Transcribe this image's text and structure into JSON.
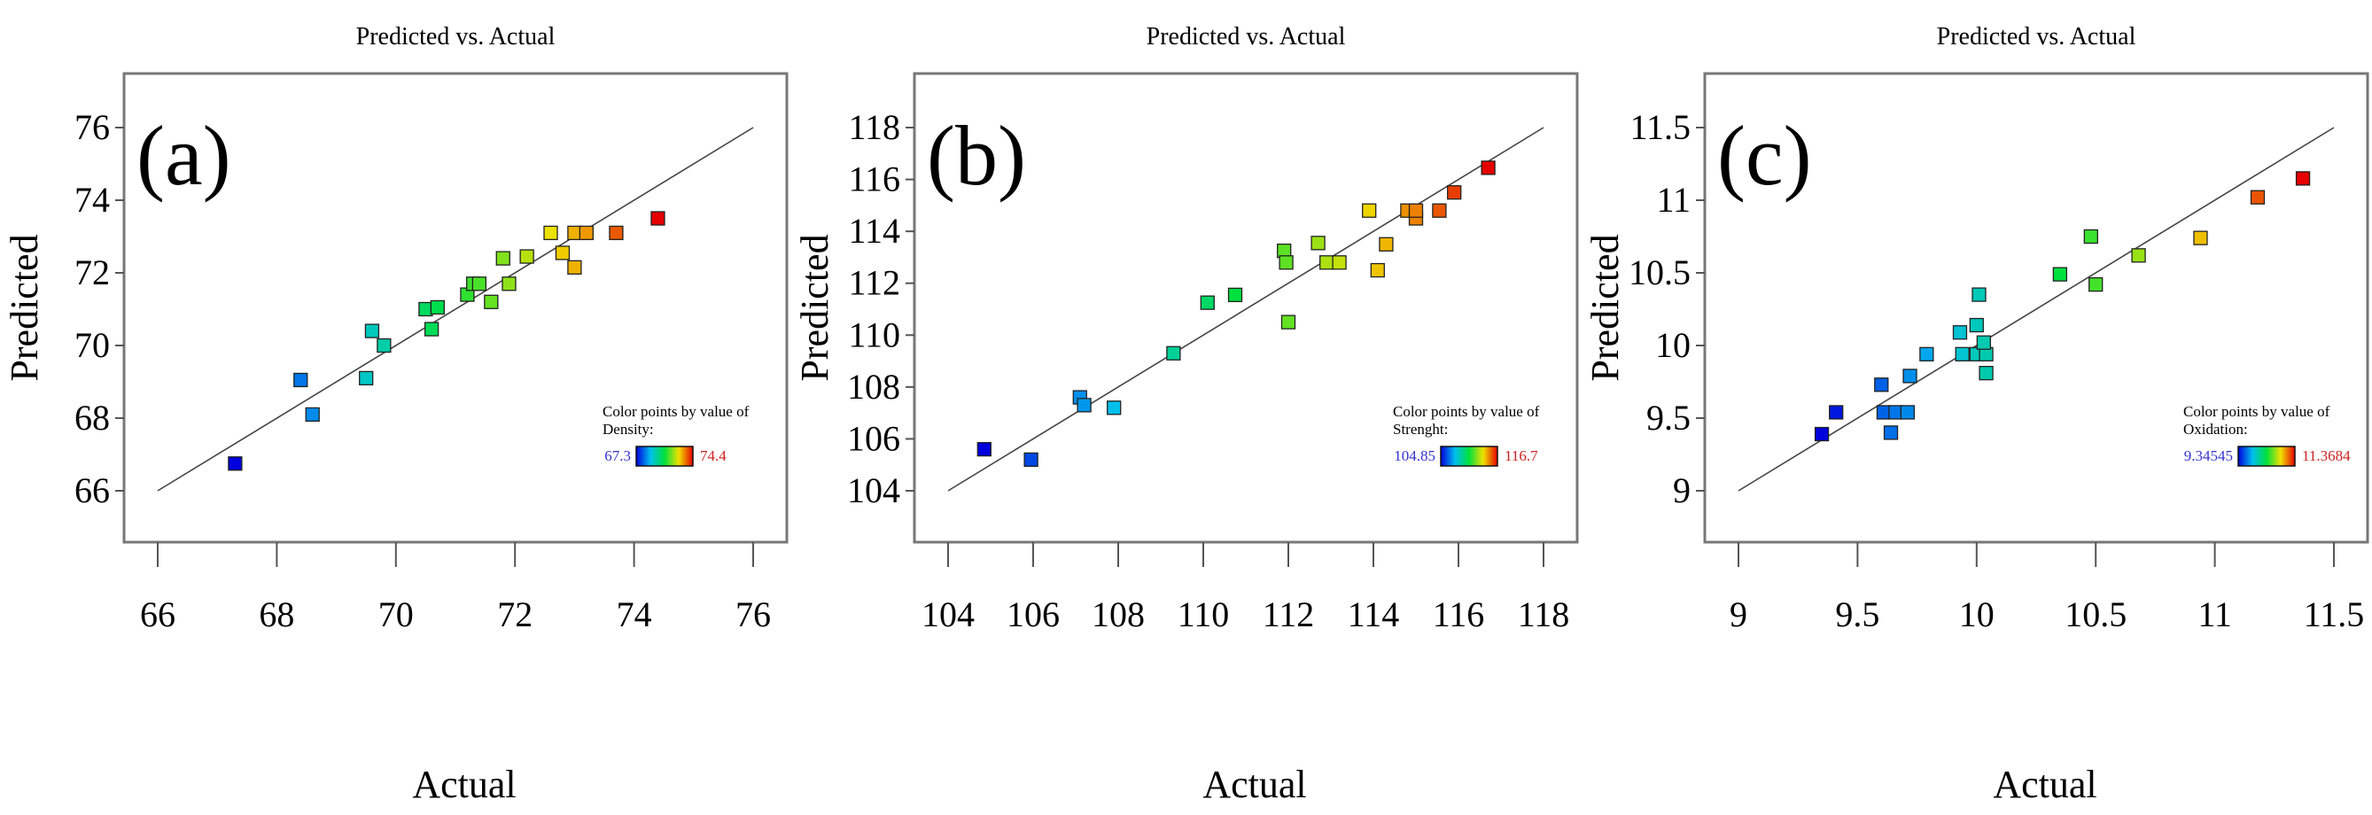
{
  "chart_data": [
    {
      "type": "scatter",
      "panel_label": "(a)",
      "title": "Predicted vs. Actual",
      "xlabel": "Actual",
      "ylabel": "Predicted",
      "xlim": [
        66,
        76
      ],
      "ylim": [
        66,
        76
      ],
      "xticks": [
        "66",
        "68",
        "70",
        "72",
        "74",
        "76"
      ],
      "yticks": [
        "66",
        "68",
        "70",
        "72",
        "74",
        "76"
      ],
      "reference_line": "y = x",
      "legend": {
        "text1": "Color points  by value of",
        "text2": "Density:",
        "min_label": "67.3",
        "max_label": "74.4",
        "min": 67.3,
        "max": 74.4,
        "placement": "bottom-right"
      },
      "points": [
        {
          "x": 67.3,
          "y": 66.75
        },
        {
          "x": 68.4,
          "y": 69.05
        },
        {
          "x": 68.6,
          "y": 68.1
        },
        {
          "x": 69.5,
          "y": 69.1
        },
        {
          "x": 69.6,
          "y": 70.4
        },
        {
          "x": 69.8,
          "y": 70.0
        },
        {
          "x": 70.5,
          "y": 71.0
        },
        {
          "x": 70.7,
          "y": 71.05
        },
        {
          "x": 70.6,
          "y": 70.45
        },
        {
          "x": 71.2,
          "y": 71.4
        },
        {
          "x": 71.3,
          "y": 71.7
        },
        {
          "x": 71.4,
          "y": 71.7
        },
        {
          "x": 71.6,
          "y": 71.2
        },
        {
          "x": 71.8,
          "y": 72.4
        },
        {
          "x": 71.9,
          "y": 71.7
        },
        {
          "x": 72.2,
          "y": 72.45
        },
        {
          "x": 72.6,
          "y": 73.1
        },
        {
          "x": 72.8,
          "y": 72.55
        },
        {
          "x": 73.0,
          "y": 72.15
        },
        {
          "x": 73.0,
          "y": 73.1
        },
        {
          "x": 73.2,
          "y": 73.1
        },
        {
          "x": 73.7,
          "y": 73.1
        },
        {
          "x": 74.4,
          "y": 73.5
        }
      ]
    },
    {
      "type": "scatter",
      "panel_label": "(b)",
      "title": "Predicted vs. Actual",
      "xlabel": "Actual",
      "ylabel": "Predicted",
      "xlim": [
        104,
        118
      ],
      "ylim": [
        104,
        118
      ],
      "xticks": [
        "104",
        "106",
        "108",
        "110",
        "112",
        "114",
        "116",
        "118"
      ],
      "yticks": [
        "104",
        "106",
        "108",
        "110",
        "112",
        "114",
        "116",
        "118"
      ],
      "reference_line": "y = x",
      "legend": {
        "text1": "Color points  by value of",
        "text2": "Strenght:",
        "min_label": "104.85",
        "max_label": "116.7",
        "min": 104.85,
        "max": 116.7,
        "placement": "bottom-right"
      },
      "points": [
        {
          "x": 104.85,
          "y": 105.6
        },
        {
          "x": 105.95,
          "y": 105.2
        },
        {
          "x": 107.1,
          "y": 107.6
        },
        {
          "x": 107.2,
          "y": 107.3
        },
        {
          "x": 107.9,
          "y": 107.2
        },
        {
          "x": 109.3,
          "y": 109.3
        },
        {
          "x": 110.1,
          "y": 111.25
        },
        {
          "x": 110.75,
          "y": 111.55
        },
        {
          "x": 111.9,
          "y": 113.25
        },
        {
          "x": 111.95,
          "y": 112.8
        },
        {
          "x": 112.0,
          "y": 110.5
        },
        {
          "x": 112.7,
          "y": 113.55
        },
        {
          "x": 112.9,
          "y": 112.8
        },
        {
          "x": 113.2,
          "y": 112.8
        },
        {
          "x": 113.9,
          "y": 114.8
        },
        {
          "x": 114.1,
          "y": 112.5
        },
        {
          "x": 114.3,
          "y": 113.5
        },
        {
          "x": 114.8,
          "y": 114.8
        },
        {
          "x": 115.0,
          "y": 114.5
        },
        {
          "x": 115.0,
          "y": 114.8
        },
        {
          "x": 115.55,
          "y": 114.8
        },
        {
          "x": 115.9,
          "y": 115.5
        },
        {
          "x": 116.7,
          "y": 116.45
        }
      ]
    },
    {
      "type": "scatter",
      "panel_label": "(c)",
      "title": "Predicted vs. Actual",
      "xlabel": "Actual",
      "ylabel": "Predicted",
      "xlim": [
        9,
        11.5
      ],
      "ylim": [
        9,
        11.5
      ],
      "xticks": [
        "9",
        "9.5",
        "10",
        "10.5",
        "11",
        "11.5"
      ],
      "yticks": [
        "9",
        "9.5",
        "10",
        "10.5",
        "11",
        "11.5"
      ],
      "reference_line": "y = x",
      "legend": {
        "text1": "Color points  by value of",
        "text2": "Oxidation:",
        "min_label": "9.34545",
        "max_label": "11.3684",
        "min": 9.34545,
        "max": 11.3684,
        "placement": "bottom-right"
      },
      "points": [
        {
          "x": 9.35,
          "y": 9.39
        },
        {
          "x": 9.41,
          "y": 9.54
        },
        {
          "x": 9.6,
          "y": 9.73
        },
        {
          "x": 9.61,
          "y": 9.54
        },
        {
          "x": 9.66,
          "y": 9.54
        },
        {
          "x": 9.71,
          "y": 9.54
        },
        {
          "x": 9.64,
          "y": 9.4
        },
        {
          "x": 9.72,
          "y": 9.79
        },
        {
          "x": 9.79,
          "y": 9.94
        },
        {
          "x": 9.93,
          "y": 10.09
        },
        {
          "x": 9.94,
          "y": 9.94
        },
        {
          "x": 10.0,
          "y": 10.14
        },
        {
          "x": 10.01,
          "y": 10.35
        },
        {
          "x": 10.0,
          "y": 9.94
        },
        {
          "x": 10.04,
          "y": 9.94
        },
        {
          "x": 10.03,
          "y": 10.02
        },
        {
          "x": 10.04,
          "y": 9.81
        },
        {
          "x": 10.35,
          "y": 10.49
        },
        {
          "x": 10.48,
          "y": 10.75
        },
        {
          "x": 10.5,
          "y": 10.42
        },
        {
          "x": 10.68,
          "y": 10.62
        },
        {
          "x": 10.94,
          "y": 10.74
        },
        {
          "x": 11.18,
          "y": 11.02
        },
        {
          "x": 11.37,
          "y": 11.15
        }
      ]
    }
  ],
  "colors": {
    "min_label": "#3333cc",
    "max_label": "#cc2222",
    "frame": "#777777",
    "diagonal": "#444444"
  }
}
